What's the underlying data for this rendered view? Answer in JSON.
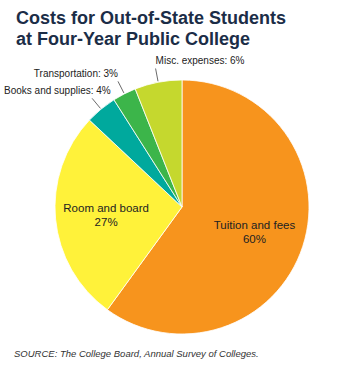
{
  "chart_data": {
    "type": "pie",
    "title": "Costs for Out-of-State Students at Four-Year Public College",
    "categories": [
      "Tuition and fees",
      "Room and board",
      "Books and supplies",
      "Transportation",
      "Misc. expenses"
    ],
    "values": [
      60,
      27,
      4,
      3,
      6
    ],
    "value_labels": [
      "60%",
      "27%",
      "4%",
      "3%",
      "6%"
    ],
    "colors": [
      "#f7941d",
      "#fff23a",
      "#00a99d",
      "#3cb54a",
      "#c5d82e"
    ],
    "data_labels": true,
    "source": "SOURCE: The College Board, Annual Survey of Colleges."
  }
}
